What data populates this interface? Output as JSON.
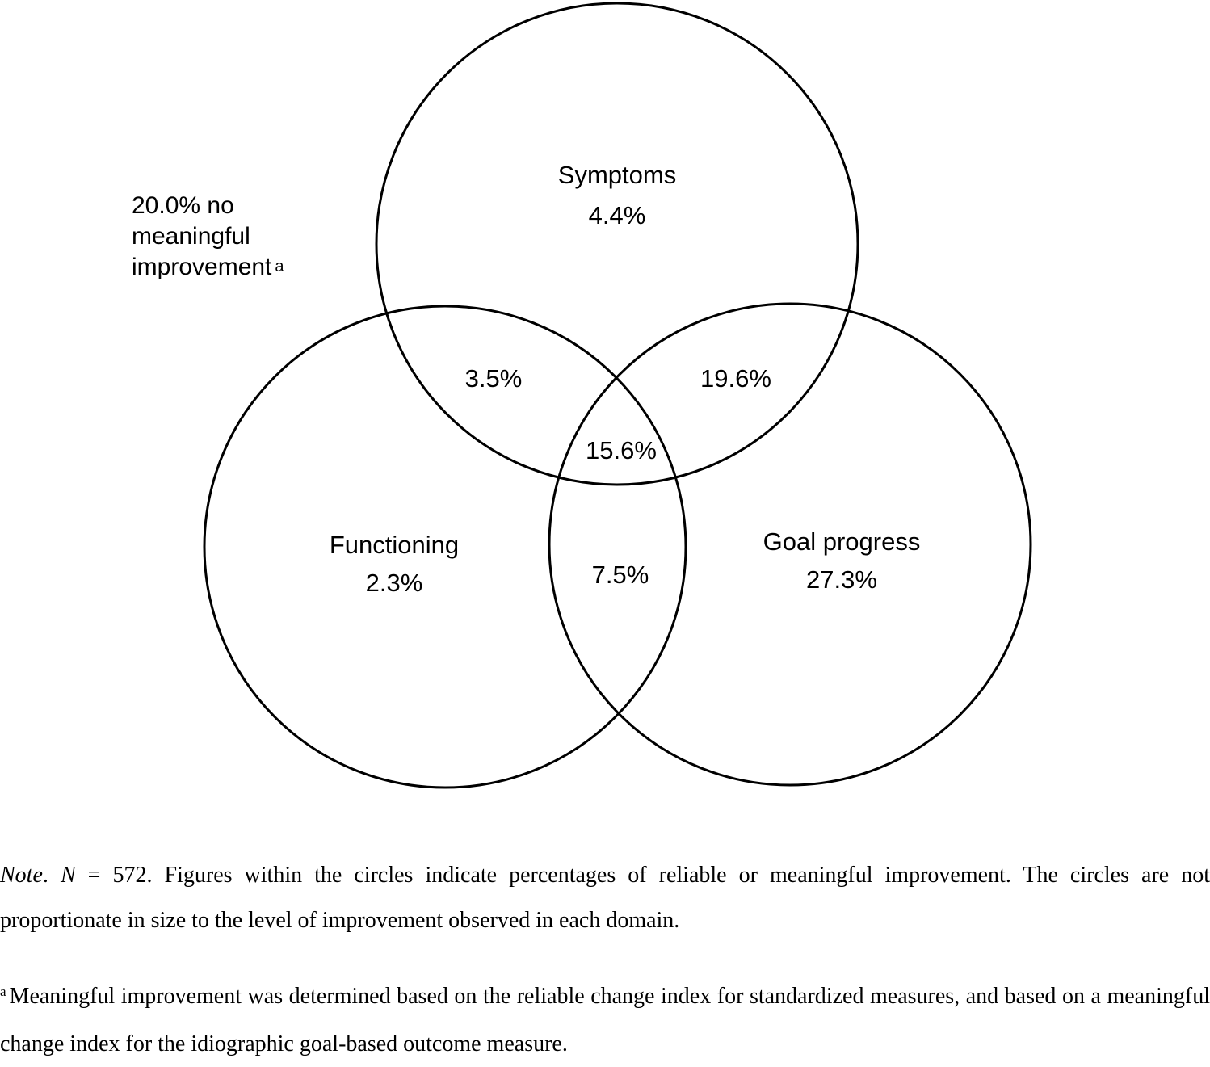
{
  "venn": {
    "symptoms": {
      "label": "Symptoms",
      "value": "4.4%"
    },
    "functioning": {
      "label": "Functioning",
      "value": "2.3%"
    },
    "goal_progress": {
      "label": "Goal progress",
      "value": "27.3%"
    },
    "symptoms_functioning": "3.5%",
    "symptoms_goal": "19.6%",
    "all_three": "15.6%",
    "functioning_goal": "7.5%",
    "outside": {
      "line1": "20.0% no",
      "line2": "meaningful",
      "line3": "improvement",
      "footnote_marker": "a"
    }
  },
  "note": {
    "label": "Note",
    "n_symbol": "N",
    "n_text": " = 572. Figures within the circles indicate percentages of reliable or meaningful improvement. The circles are not proportionate in size to the level of improvement observed in each domain.",
    "footnote_marker": "a",
    "footnote_text": "Meaningful improvement was determined based on the reliable change index for standardized measures, and based on a meaningful change index for the idiographic goal-based outcome measure."
  }
}
